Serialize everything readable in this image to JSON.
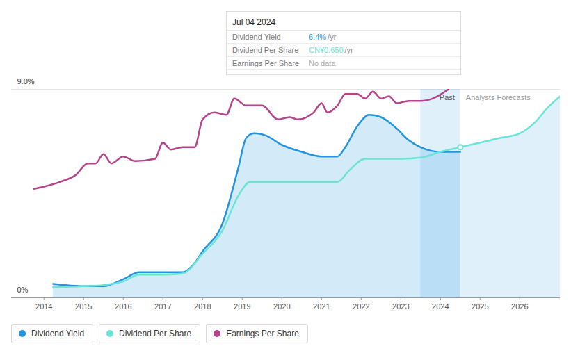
{
  "chart_data": {
    "type": "line",
    "xlim": [
      2013.18,
      2027.02
    ],
    "xticks": [
      2014,
      2015,
      2016,
      2017,
      2018,
      2019,
      2020,
      2021,
      2022,
      2023,
      2024,
      2025,
      2026
    ],
    "ylim": [
      0,
      9
    ],
    "yticks": [
      {
        "value": 0,
        "label": "0%"
      },
      {
        "value": 9,
        "label": "9.0%"
      }
    ],
    "grid": true,
    "series": [
      {
        "name": "Dividend Yield",
        "color": "#2394df",
        "type": "area",
        "x": [
          2014.23,
          2015,
          2015.5,
          2016,
          2016.4,
          2017,
          2017.5,
          2017.8,
          2018,
          2018.5,
          2018.9,
          2019.1,
          2019.3,
          2019.6,
          2020,
          2020.5,
          2021,
          2021.4,
          2021.6,
          2021.9,
          2022.2,
          2022.5,
          2022.9,
          2023.2,
          2023.5,
          2024,
          2024.5
        ],
        "values": [
          0.6,
          0.5,
          0.5,
          0.8,
          1.1,
          1.1,
          1.1,
          1.5,
          2.0,
          3.2,
          5.6,
          6.9,
          7.1,
          7.0,
          6.6,
          6.3,
          6.1,
          6.1,
          6.5,
          7.4,
          7.9,
          7.8,
          7.3,
          6.8,
          6.5,
          6.3,
          6.3
        ]
      },
      {
        "name": "Dividend Per Share",
        "color": "#6be3d5",
        "x": [
          2014.23,
          2015,
          2015.5,
          2016,
          2016.4,
          2017,
          2017.5,
          2018,
          2018.5,
          2018.9,
          2019.2,
          2020,
          2021,
          2021.4,
          2021.7,
          2022.1,
          2023,
          2023.5,
          2024,
          2024.5,
          2025,
          2025.5,
          2026,
          2026.4,
          2026.7,
          2027.02
        ],
        "values": [
          0.45,
          0.5,
          0.55,
          0.7,
          1.0,
          1.0,
          1.05,
          1.9,
          2.9,
          4.4,
          5.0,
          5.0,
          5.0,
          5.0,
          5.5,
          6.0,
          6.0,
          6.05,
          6.3,
          6.5,
          6.7,
          6.9,
          7.1,
          7.6,
          8.2,
          8.7
        ]
      },
      {
        "name": "Earnings Per Share",
        "color": "#b5428a",
        "x": [
          2013.75,
          2014,
          2014.4,
          2014.8,
          2015.1,
          2015.3,
          2015.5,
          2015.7,
          2016,
          2016.3,
          2016.8,
          2017,
          2017.2,
          2017.5,
          2017.8,
          2018,
          2018.3,
          2018.6,
          2018.8,
          2019.1,
          2019.5,
          2019.9,
          2020.2,
          2020.4,
          2020.8,
          2021,
          2021.15,
          2021.4,
          2021.6,
          2021.9,
          2022.1,
          2022.3,
          2022.5,
          2022.7,
          2022.9,
          2023.2,
          2023.5,
          2023.8,
          2024.2
        ],
        "values": [
          4.7,
          4.8,
          5.0,
          5.3,
          5.8,
          5.8,
          6.2,
          5.8,
          6.1,
          5.9,
          6.0,
          6.7,
          6.4,
          6.5,
          6.5,
          7.7,
          8.0,
          7.9,
          8.6,
          8.3,
          8.3,
          7.7,
          7.8,
          7.7,
          8.0,
          8.4,
          8.0,
          8.3,
          8.8,
          8.8,
          8.6,
          8.9,
          8.6,
          8.7,
          8.4,
          8.5,
          8.5,
          8.6,
          9.0
        ]
      }
    ],
    "past_band": [
      2023.5,
      2024.5
    ],
    "annotations": {
      "past": "Past",
      "forecast": "Analysts Forecasts"
    },
    "tooltip": {
      "date": "Jul 04 2024",
      "rows": [
        {
          "label": "Dividend Yield",
          "value": "6.4%",
          "unit": "/yr"
        },
        {
          "label": "Dividend Per Share",
          "value": "CN¥0.650",
          "unit": "/yr"
        },
        {
          "label": "Earnings Per Share",
          "value": "No data"
        }
      ]
    },
    "legend": "bottom-left"
  }
}
